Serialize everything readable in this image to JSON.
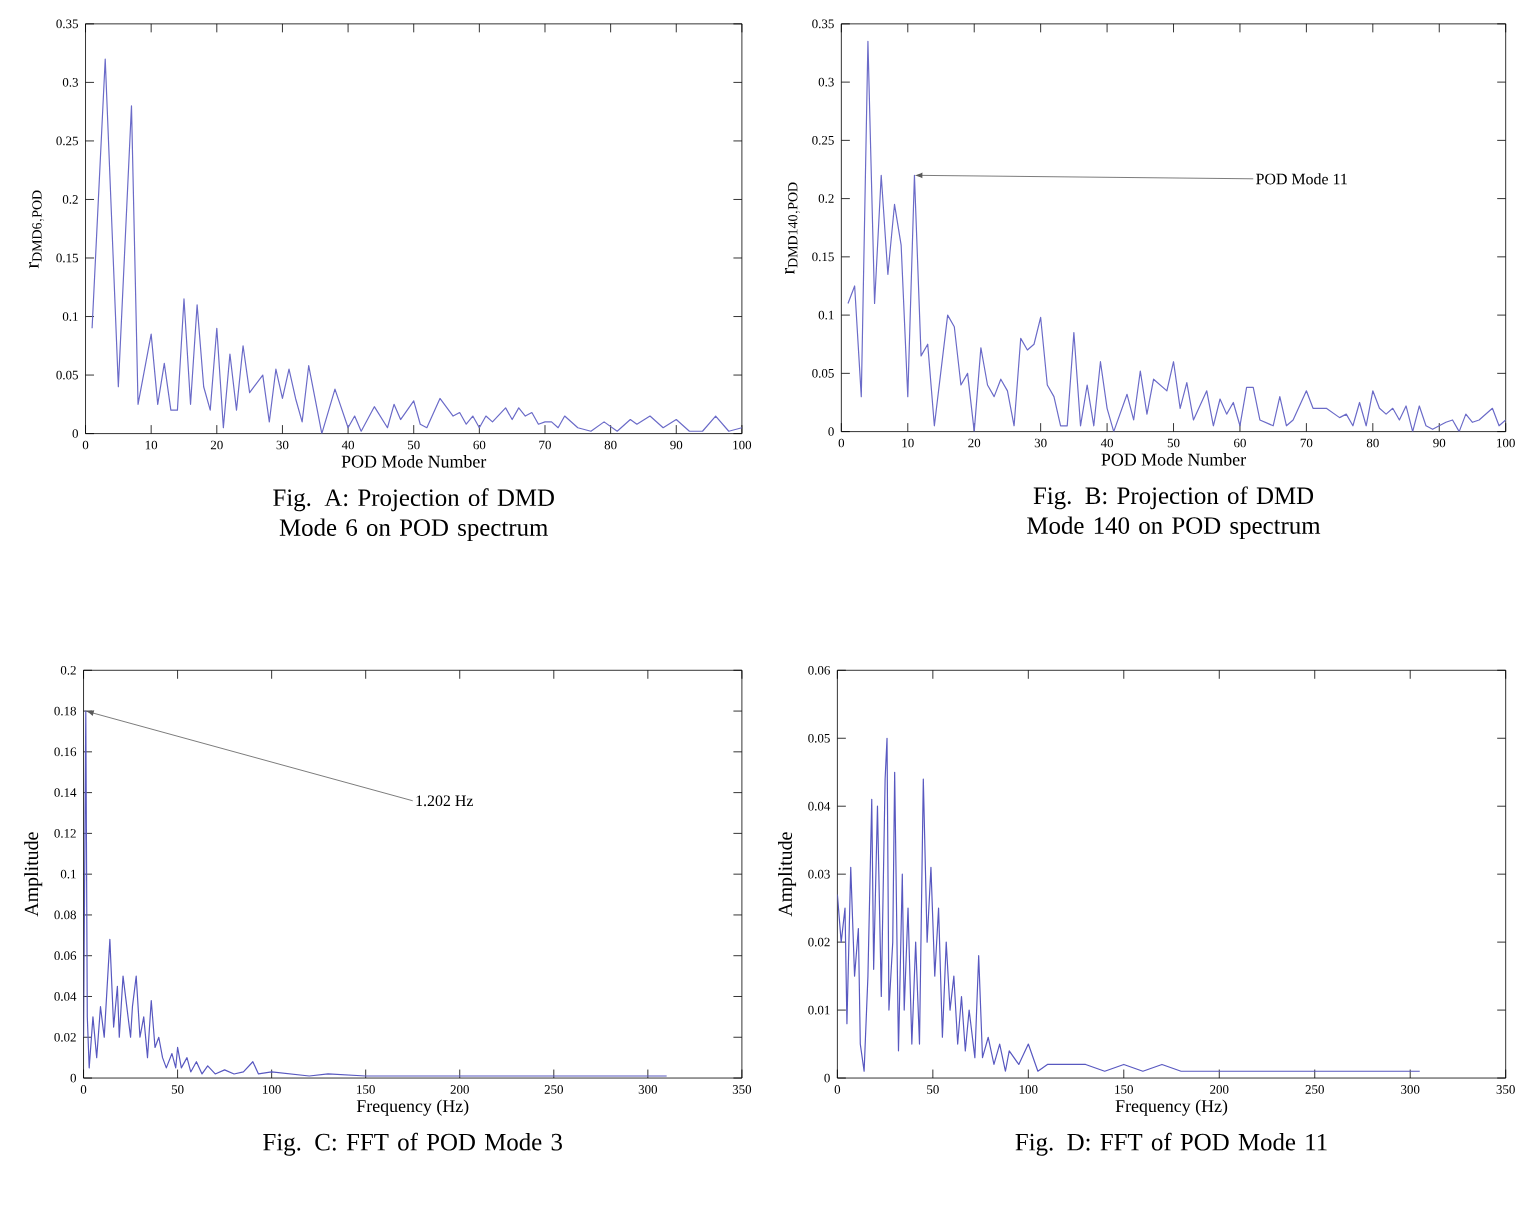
{
  "chart_data": [
    {
      "type": "line",
      "title": "Fig. A: Projection of DMD Mode 6 on POD spectrum",
      "xlabel": "POD Mode Number",
      "ylabel": "\\mathrm{r}_{\\mathrm{DMD6,POD}}",
      "color": "#6b6bc8",
      "x": [
        1,
        3,
        5,
        7,
        8,
        10,
        11,
        12,
        13,
        14,
        15,
        16,
        17,
        18,
        19,
        20,
        21,
        22,
        23,
        24,
        25,
        27,
        28,
        29,
        30,
        31,
        32,
        33,
        34,
        36,
        38,
        40,
        41,
        42,
        44,
        46,
        47,
        48,
        50,
        51,
        52,
        54,
        56,
        57,
        58,
        59,
        60,
        61,
        62,
        64,
        65,
        66,
        67,
        68,
        69,
        70,
        71,
        72,
        73,
        75,
        77,
        79,
        81,
        83,
        84,
        86,
        88,
        90,
        92,
        94,
        96,
        98,
        100
      ],
      "values": [
        0.09,
        0.32,
        0.04,
        0.28,
        0.025,
        0.085,
        0.025,
        0.06,
        0.02,
        0.02,
        0.115,
        0.025,
        0.11,
        0.04,
        0.02,
        0.09,
        0.005,
        0.068,
        0.02,
        0.075,
        0.035,
        0.05,
        0.01,
        0.055,
        0.03,
        0.055,
        0.03,
        0.01,
        0.058,
        0.0,
        0.038,
        0.005,
        0.015,
        0.002,
        0.023,
        0.005,
        0.025,
        0.012,
        0.028,
        0.008,
        0.005,
        0.03,
        0.015,
        0.018,
        0.008,
        0.015,
        0.005,
        0.015,
        0.01,
        0.022,
        0.012,
        0.022,
        0.015,
        0.018,
        0.008,
        0.01,
        0.01,
        0.005,
        0.015,
        0.005,
        0.002,
        0.01,
        0.002,
        0.012,
        0.008,
        0.015,
        0.005,
        0.012,
        0.002,
        0.002,
        0.015,
        0.002,
        0.005
      ],
      "xlim": [
        0,
        100
      ],
      "xticks": [
        0,
        10,
        20,
        30,
        40,
        50,
        60,
        70,
        80,
        90,
        100
      ],
      "ylim": [
        0,
        0.35
      ],
      "yticks": [
        0,
        0.05,
        0.1,
        0.15,
        0.2,
        0.25,
        0.3,
        0.35
      ]
    },
    {
      "type": "line",
      "title": "Fig. B: Projection of DMD Mode 140 on POD spectrum",
      "xlabel": "POD Mode Number",
      "ylabel": "\\mathrm{r}_{\\mathrm{DMD140,POD}}",
      "color": "#6b6bc8",
      "x": [
        1,
        2,
        3,
        4,
        5,
        6,
        7,
        8,
        9,
        10,
        11,
        12,
        13,
        14,
        16,
        17,
        18,
        19,
        20,
        21,
        22,
        23,
        24,
        25,
        26,
        27,
        28,
        29,
        30,
        31,
        32,
        33,
        34,
        35,
        36,
        37,
        38,
        39,
        40,
        41,
        43,
        44,
        45,
        46,
        47,
        49,
        50,
        51,
        52,
        53,
        55,
        56,
        57,
        58,
        59,
        60,
        61,
        62,
        63,
        65,
        66,
        67,
        68,
        70,
        71,
        73,
        75,
        76,
        77,
        78,
        79,
        80,
        81,
        82,
        83,
        84,
        85,
        86,
        87,
        88,
        89,
        91,
        92,
        93,
        94,
        95,
        96,
        97,
        98,
        99,
        100
      ],
      "values": [
        0.11,
        0.125,
        0.03,
        0.335,
        0.11,
        0.22,
        0.135,
        0.195,
        0.16,
        0.03,
        0.22,
        0.065,
        0.075,
        0.005,
        0.1,
        0.09,
        0.04,
        0.05,
        0.0,
        0.072,
        0.04,
        0.03,
        0.045,
        0.035,
        0.005,
        0.08,
        0.07,
        0.075,
        0.098,
        0.04,
        0.03,
        0.005,
        0.005,
        0.085,
        0.005,
        0.04,
        0.005,
        0.06,
        0.02,
        0.0,
        0.032,
        0.01,
        0.052,
        0.015,
        0.045,
        0.035,
        0.06,
        0.02,
        0.042,
        0.01,
        0.035,
        0.005,
        0.028,
        0.015,
        0.025,
        0.005,
        0.038,
        0.038,
        0.01,
        0.005,
        0.03,
        0.005,
        0.01,
        0.035,
        0.02,
        0.02,
        0.012,
        0.015,
        0.005,
        0.025,
        0.005,
        0.035,
        0.02,
        0.015,
        0.02,
        0.01,
        0.022,
        0.0,
        0.022,
        0.005,
        0.002,
        0.008,
        0.01,
        0.0,
        0.015,
        0.008,
        0.01,
        0.015,
        0.02,
        0.005,
        0.01
      ],
      "xlim": [
        0,
        100
      ],
      "xticks": [
        0,
        10,
        20,
        30,
        40,
        50,
        60,
        70,
        80,
        90,
        100
      ],
      "ylim": [
        0,
        0.35
      ],
      "yticks": [
        0,
        0.05,
        0.1,
        0.15,
        0.2,
        0.25,
        0.3,
        0.35
      ],
      "annotations": [
        {
          "text": "POD Mode 11",
          "x": 11,
          "y": 0.22
        }
      ]
    },
    {
      "type": "line",
      "title": "Fig. C: FFT of POD Mode 3",
      "xlabel": "Frequency (Hz)",
      "ylabel": "\\mathrm{Amplitude}",
      "color": "#5858c0",
      "x": [
        0,
        1.202,
        2,
        3,
        5,
        7,
        9,
        11,
        14,
        16,
        18,
        19,
        21,
        23,
        25,
        26,
        28,
        30,
        32,
        34,
        36,
        38,
        40,
        42,
        44,
        47,
        49,
        50,
        52,
        55,
        57,
        60,
        63,
        66,
        70,
        75,
        80,
        85,
        90,
        93,
        100,
        110,
        120,
        130,
        150,
        170,
        200,
        230,
        260,
        300,
        310
      ],
      "values": [
        0.02,
        0.18,
        0.03,
        0.005,
        0.03,
        0.01,
        0.035,
        0.02,
        0.068,
        0.025,
        0.045,
        0.02,
        0.05,
        0.035,
        0.02,
        0.035,
        0.05,
        0.02,
        0.03,
        0.01,
        0.038,
        0.015,
        0.02,
        0.01,
        0.005,
        0.012,
        0.005,
        0.015,
        0.005,
        0.01,
        0.003,
        0.008,
        0.002,
        0.006,
        0.002,
        0.004,
        0.002,
        0.003,
        0.008,
        0.002,
        0.003,
        0.002,
        0.001,
        0.002,
        0.001,
        0.001,
        0.001,
        0.001,
        0.001,
        0.001,
        0.001
      ],
      "xlim": [
        0,
        350
      ],
      "xticks": [
        0,
        50,
        100,
        150,
        200,
        250,
        300,
        350
      ],
      "ylim": [
        0,
        0.2
      ],
      "yticks": [
        0,
        0.02,
        0.04,
        0.06,
        0.08,
        0.1,
        0.12,
        0.14,
        0.16,
        0.18,
        0.2
      ],
      "annotations": [
        {
          "text": "1.202 Hz",
          "x": 1.202,
          "y": 0.18
        }
      ]
    },
    {
      "type": "line",
      "title": "Fig. D: FFT of POD Mode 11",
      "xlabel": "Frequency (Hz)",
      "ylabel": "\\mathrm{Amplitude}",
      "color": "#5858c0",
      "x": [
        0,
        2,
        4,
        5,
        7,
        9,
        11,
        12,
        14,
        16,
        18,
        19,
        21,
        23,
        25,
        26,
        27,
        29,
        30,
        32,
        34,
        35,
        37,
        39,
        41,
        43,
        45,
        47,
        49,
        51,
        53,
        55,
        57,
        59,
        61,
        63,
        65,
        67,
        69,
        72,
        74,
        76,
        79,
        82,
        85,
        88,
        90,
        95,
        100,
        105,
        110,
        120,
        130,
        140,
        150,
        160,
        170,
        180,
        190,
        200,
        210,
        230,
        250,
        270,
        290,
        305
      ],
      "values": [
        0.027,
        0.02,
        0.025,
        0.008,
        0.031,
        0.015,
        0.022,
        0.005,
        0.001,
        0.015,
        0.041,
        0.016,
        0.04,
        0.012,
        0.044,
        0.05,
        0.01,
        0.02,
        0.045,
        0.004,
        0.03,
        0.01,
        0.025,
        0.005,
        0.02,
        0.005,
        0.044,
        0.02,
        0.031,
        0.015,
        0.025,
        0.006,
        0.02,
        0.01,
        0.015,
        0.005,
        0.012,
        0.004,
        0.01,
        0.003,
        0.018,
        0.003,
        0.006,
        0.002,
        0.005,
        0.001,
        0.004,
        0.002,
        0.005,
        0.001,
        0.002,
        0.002,
        0.002,
        0.001,
        0.002,
        0.001,
        0.002,
        0.001,
        0.001,
        0.001,
        0.001,
        0.001,
        0.001,
        0.001,
        0.001,
        0.001
      ],
      "xlim": [
        0,
        350
      ],
      "xticks": [
        0,
        50,
        100,
        150,
        200,
        250,
        300,
        350
      ],
      "ylim": [
        0,
        0.06
      ],
      "yticks": [
        0,
        0.01,
        0.02,
        0.03,
        0.04,
        0.05,
        0.06
      ]
    }
  ]
}
